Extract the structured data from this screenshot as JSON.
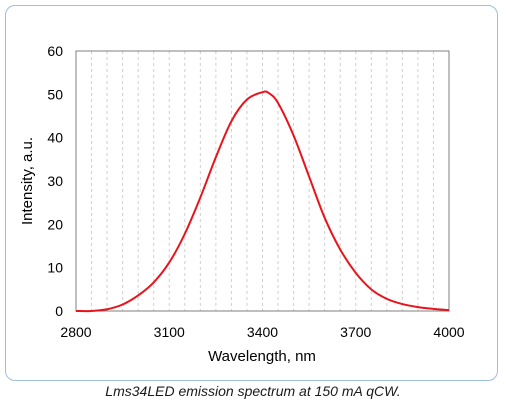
{
  "chart_data": {
    "type": "line",
    "title": "",
    "xlabel": "Wavelength, nm",
    "ylabel": "Intensity, a.u.",
    "xlim": [
      2800,
      4000
    ],
    "ylim": [
      0,
      60
    ],
    "x_ticks": [
      2800,
      3100,
      3400,
      3700,
      4000
    ],
    "y_ticks": [
      0,
      10,
      20,
      30,
      40,
      50,
      60
    ],
    "grid": "vertical minor dashed lines",
    "legend": "none",
    "series": [
      {
        "color": "#e8141b",
        "x": [
          2800,
          2850,
          2900,
          2950,
          3000,
          3050,
          3100,
          3150,
          3200,
          3250,
          3300,
          3350,
          3400,
          3420,
          3450,
          3500,
          3550,
          3600,
          3650,
          3700,
          3750,
          3800,
          3850,
          3900,
          3950,
          4000
        ],
        "y": [
          0,
          0,
          0.4,
          1.5,
          3.6,
          6.6,
          11.2,
          17.8,
          26.2,
          35.5,
          43.8,
          48.8,
          50.5,
          50.3,
          48.0,
          40.5,
          31.0,
          21.5,
          14.2,
          8.8,
          5.0,
          2.8,
          1.6,
          0.9,
          0.5,
          0.2
        ]
      }
    ]
  },
  "caption": "Lms34LED emission spectrum at 150 mA qCW."
}
